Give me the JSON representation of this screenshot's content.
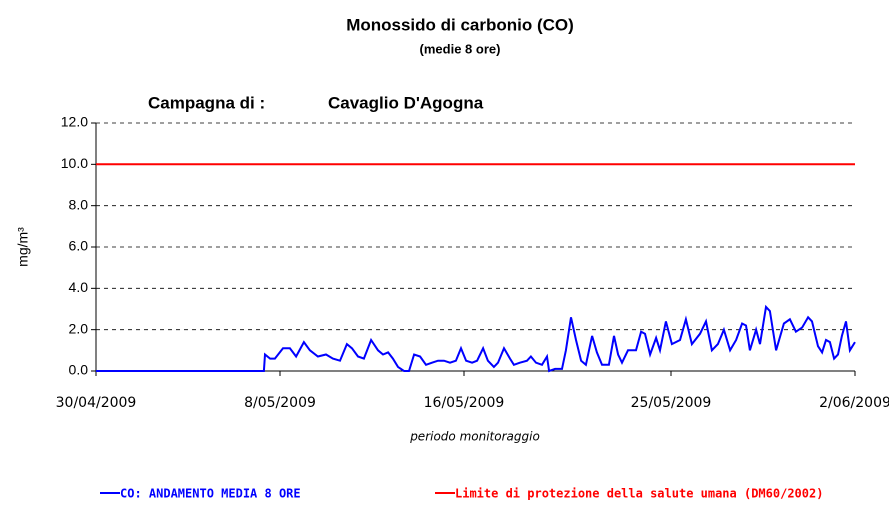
{
  "chart_data": {
    "type": "line",
    "title": "Monossido di carbonio (CO)",
    "subtitle": "(medie 8 ore)",
    "annotations": [
      "Campagna di :",
      "Cavaglio D'Agogna"
    ],
    "y_label": "mg/m³",
    "x_label": "periodo monitoraggio",
    "xlim": [
      0,
      33
    ],
    "xticks": [
      {
        "value": 0,
        "label": "30/04/2009"
      },
      {
        "value": 8,
        "label": "8/05/2009"
      },
      {
        "value": 16,
        "label": "16/05/2009"
      },
      {
        "value": 25,
        "label": "25/05/2009"
      },
      {
        "value": 33,
        "label": "2/06/2009"
      }
    ],
    "ylim": [
      0,
      12
    ],
    "yticks": [
      {
        "value": 0,
        "label": "0.0"
      },
      {
        "value": 2,
        "label": "2.0"
      },
      {
        "value": 4,
        "label": "4.0"
      },
      {
        "value": 6,
        "label": "6.0"
      },
      {
        "value": 8,
        "label": "8.0"
      },
      {
        "value": 10,
        "label": "10.0"
      },
      {
        "value": 12,
        "label": "12.0"
      }
    ],
    "grid": true,
    "legend": "bottom",
    "series": [
      {
        "name": "CO: ANDAMENTO MEDIA 8 ORE",
        "color": "#0000ff",
        "x": [
          0,
          7.3,
          7.35,
          7.57,
          7.78,
          8.13,
          8.43,
          8.7,
          9.04,
          9.3,
          9.65,
          10.0,
          10.3,
          10.61,
          10.91,
          11.13,
          11.39,
          11.65,
          11.96,
          12.26,
          12.48,
          12.7,
          12.91,
          13.13,
          13.39,
          13.61,
          13.83,
          14.09,
          14.35,
          14.61,
          14.87,
          15.13,
          15.39,
          15.65,
          15.87,
          16.09,
          16.35,
          16.57,
          16.83,
          17.04,
          17.3,
          17.48,
          17.74,
          18.0,
          18.17,
          18.43,
          18.74,
          18.91,
          19.13,
          19.39,
          19.61,
          19.7,
          19.96,
          20.26,
          20.43,
          20.65,
          20.87,
          21.09,
          21.3,
          21.57,
          21.78,
          22.0,
          22.3,
          22.52,
          22.7,
          22.87,
          23.13,
          23.48,
          23.7,
          23.87,
          24.09,
          24.35,
          24.52,
          24.78,
          25.04,
          25.39,
          25.65,
          25.91,
          26.26,
          26.52,
          26.78,
          27.04,
          27.3,
          27.57,
          27.83,
          28.09,
          28.26,
          28.43,
          28.7,
          28.87,
          29.13,
          29.3,
          29.57,
          29.91,
          30.17,
          30.43,
          30.7,
          30.96,
          31.13,
          31.39,
          31.57,
          31.74,
          31.91,
          32.09,
          32.26,
          32.43,
          32.61,
          32.78,
          33.0
        ],
        "values": [
          0,
          0,
          0.8,
          0.6,
          0.6,
          1.1,
          1.1,
          0.7,
          1.4,
          1.0,
          0.7,
          0.8,
          0.6,
          0.5,
          1.3,
          1.1,
          0.7,
          0.6,
          1.5,
          1.0,
          0.8,
          0.9,
          0.6,
          0.2,
          0.0,
          0.0,
          0.8,
          0.7,
          0.3,
          0.4,
          0.5,
          0.5,
          0.4,
          0.5,
          1.1,
          0.5,
          0.4,
          0.5,
          1.1,
          0.5,
          0.2,
          0.4,
          1.1,
          0.6,
          0.3,
          0.4,
          0.5,
          0.7,
          0.4,
          0.3,
          0.7,
          0.0,
          0.1,
          0.1,
          1.0,
          2.6,
          1.5,
          0.5,
          0.3,
          1.7,
          0.9,
          0.3,
          0.3,
          1.7,
          0.8,
          0.4,
          1.0,
          1.0,
          1.9,
          1.8,
          0.8,
          1.6,
          1.0,
          2.4,
          1.3,
          1.5,
          2.5,
          1.3,
          1.8,
          2.4,
          1.0,
          1.3,
          2.0,
          1.0,
          1.5,
          2.3,
          2.2,
          1.0,
          2.0,
          1.3,
          3.1,
          2.9,
          1.0,
          2.3,
          2.5,
          1.9,
          2.1,
          2.6,
          2.4,
          1.2,
          0.9,
          1.5,
          1.4,
          0.6,
          0.8,
          1.7,
          2.4,
          1.0,
          1.4
        ]
      },
      {
        "name": "Limite di protezione della salute umana (DM60/2002)",
        "color": "#ff0000",
        "x": [
          0,
          33
        ],
        "values": [
          10,
          10
        ]
      }
    ]
  }
}
